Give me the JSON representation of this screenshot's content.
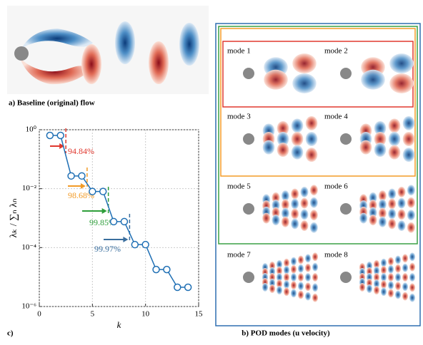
{
  "panels": {
    "a": "a) Baseline (original) flow",
    "b": "b) POD modes (u velocity)",
    "c": "c)"
  },
  "modes": [
    "mode 1",
    "mode 2",
    "mode 3",
    "mode 4",
    "mode 5",
    "mode 6",
    "mode 7",
    "mode 8"
  ],
  "chart_data": {
    "type": "line",
    "xlabel": "k",
    "ylabel": "λₖ / ∑ₙ λₙ",
    "color": "#1f6fb4",
    "x": [
      1,
      2,
      3,
      4,
      5,
      6,
      7,
      8,
      9,
      10,
      11,
      12,
      13,
      14
    ],
    "values": [
      0.64,
      0.64,
      0.027,
      0.027,
      0.008,
      0.008,
      0.00076,
      0.00076,
      0.000126,
      0.000126,
      1.8e-05,
      1.8e-05,
      4.5e-06,
      4.5e-06
    ],
    "xlim": [
      0,
      15
    ],
    "xticks": [
      0,
      5,
      10,
      15
    ],
    "ylim": [
      1e-06,
      1
    ],
    "log_y": true,
    "yticks": [
      {
        "value": 1,
        "label": "10⁰"
      },
      {
        "value": 0.01,
        "label": "10⁻²"
      },
      {
        "value": 0.0001,
        "label": "10⁻⁴"
      },
      {
        "value": 1e-06,
        "label": "10⁻⁶"
      }
    ],
    "grid": true,
    "annotations": [
      {
        "text": "94.84%",
        "k": 2.5,
        "color": "#e0382e"
      },
      {
        "text": "98.68%",
        "k": 4.5,
        "color": "#f29b26"
      },
      {
        "text": "99.85%",
        "k": 6.5,
        "color": "#2e9e3a"
      },
      {
        "text": "99.97%",
        "k": 8.5,
        "color": "#3a6e9e"
      }
    ]
  }
}
